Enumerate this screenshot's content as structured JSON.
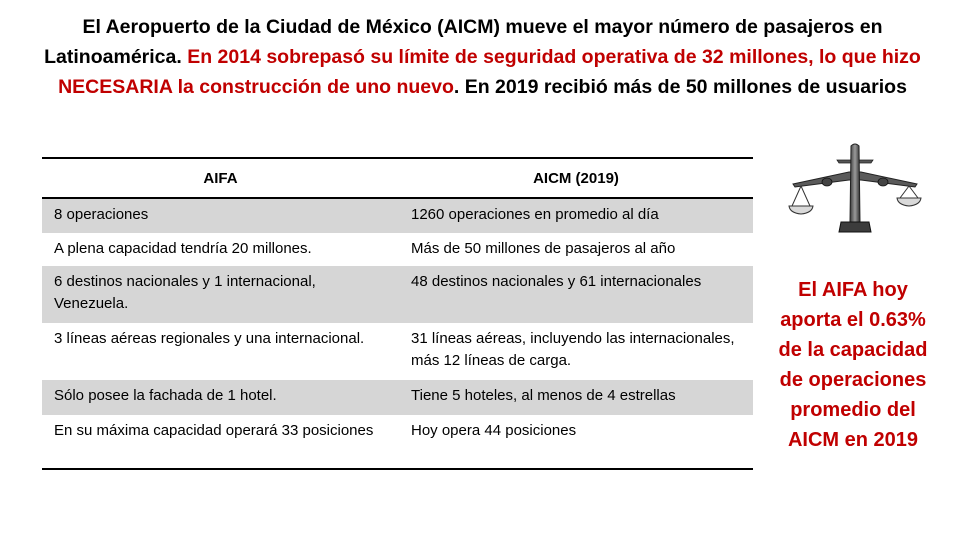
{
  "headline": {
    "part1": "El Aeropuerto de la Ciudad de México (AICM) mueve el mayor número de pasajeros en Latinoamérica. ",
    "part2_red": "En 2014 sobrepasó su límite de seguridad operativa de 32 millones, lo que hizo NECESARIA la construcción de uno nuevo",
    "part3": ". En 2019 recibió más de 50 millones de usuarios"
  },
  "table": {
    "headers": [
      "AIFA",
      "AICM (2019)"
    ],
    "rows": [
      {
        "aifa": "8 operaciones",
        "aicm": "1260 operaciones en promedio al día"
      },
      {
        "aifa": "A plena capacidad tendría 20 millones.",
        "aicm": "Más de 50 millones de pasajeros al año"
      },
      {
        "aifa": "6 destinos nacionales y 1 internacional, Venezuela.",
        "aicm": "48 destinos nacionales y 61 internacionales"
      },
      {
        "aifa": "3 líneas aéreas regionales y una internacional.",
        "aicm": "31 líneas aéreas, incluyendo  las internacionales, más 12 líneas de carga."
      },
      {
        "aifa": "Sólo posee la fachada de 1 hotel.",
        "aicm": "Tiene 5 hoteles, al menos de 4 estrellas"
      },
      {
        "aifa": "En su máxima capacidad operará 33 posiciones",
        "aicm": "Hoy opera 44 posiciones"
      }
    ]
  },
  "illustration": {
    "icon": "airplane-balance-scale-icon"
  },
  "sidebar": {
    "text": "El AIFA  hoy aporta el 0.63% de la capacidad de operaciones promedio del AICM en 2019"
  },
  "colors": {
    "accent_red": "#c00000",
    "row_shade": "#d6d6d6"
  }
}
